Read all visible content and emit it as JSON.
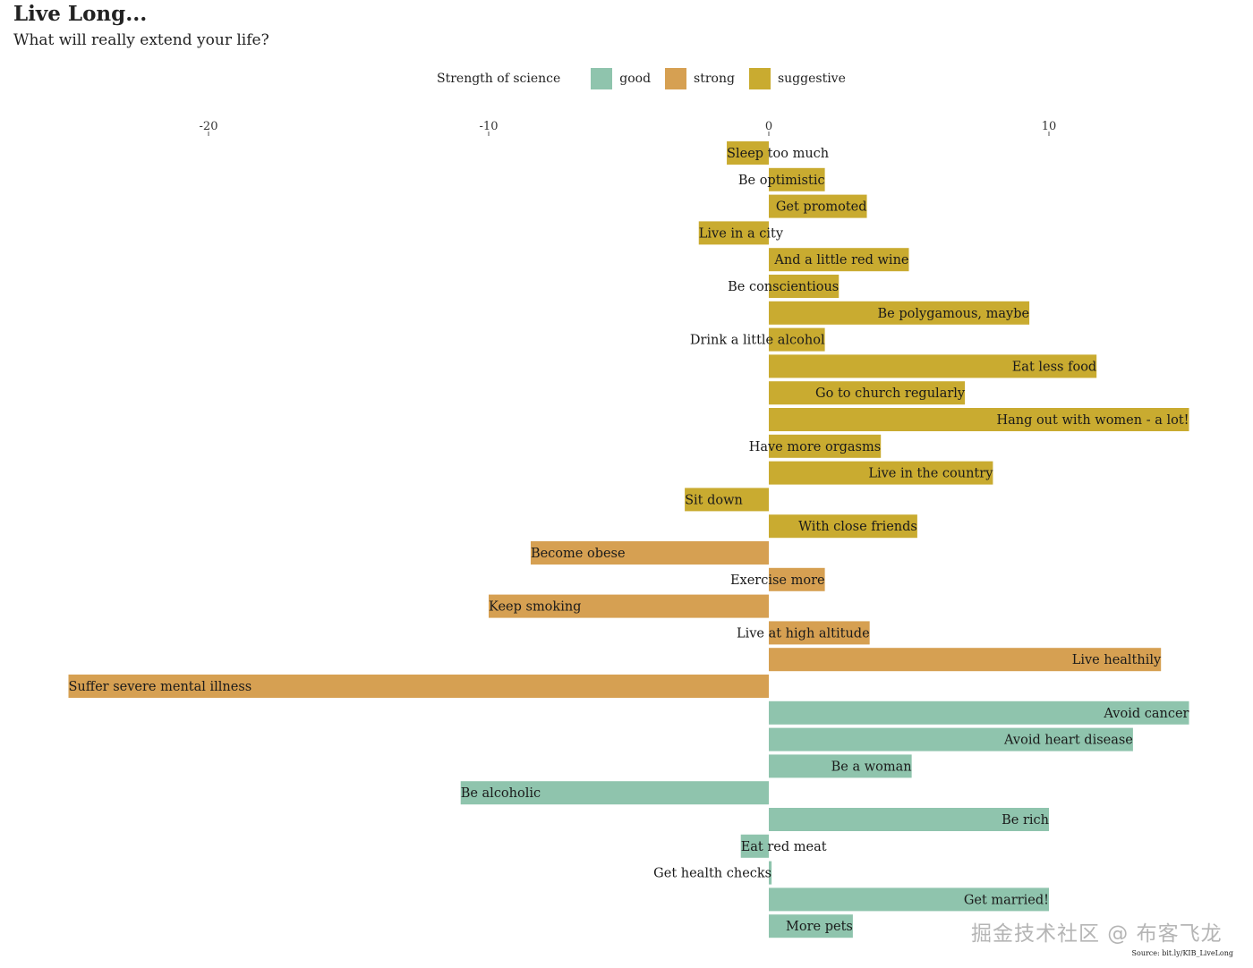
{
  "header": {
    "title": "Live Long...",
    "subtitle": "What will really extend your life?"
  },
  "legend": {
    "title": "Strength of science",
    "items": [
      {
        "label": "good",
        "color": "#8fc4ad"
      },
      {
        "label": "strong",
        "color": "#d6a052"
      },
      {
        "label": "suggestive",
        "color": "#c9ab30"
      }
    ]
  },
  "source": "Source: bit.ly/KIB_LiveLong",
  "watermark": "掘金技术社区 @ 布客飞龙",
  "chart_data": {
    "type": "bar",
    "orientation": "horizontal",
    "xlim": [
      -25,
      15.5
    ],
    "x_ticks": [
      "-20",
      "-10",
      "0",
      "10"
    ],
    "x_tick_values": [
      -20,
      -10,
      0,
      10
    ],
    "grid": false,
    "legend_position": "top",
    "categories": [
      "Sleep too much",
      "Be optimistic",
      "Get promoted",
      "Live in a city",
      "And a little red wine",
      "Be conscientious",
      "Be polygamous, maybe",
      "Drink a little alcohol",
      "Eat less food",
      "Go to church regularly",
      "Hang out with women - a lot!",
      "Have more orgasms",
      "Live in the country",
      "Sit down",
      "With close friends",
      "Become obese",
      "Exercise more",
      "Keep smoking",
      "Live at high altitude",
      "Live healthily",
      "Suffer severe mental illness",
      "Avoid cancer",
      "Avoid heart disease",
      "Be a woman",
      "Be alcoholic",
      "Be rich",
      "Eat red meat",
      "Get health checks",
      "Get married!",
      "More pets"
    ],
    "values": [
      -1.5,
      2,
      3.5,
      -2.5,
      5,
      2.5,
      9.3,
      2,
      11.7,
      7,
      15,
      4,
      8,
      -3,
      5.3,
      -8.5,
      2,
      -10,
      3.6,
      14,
      -25,
      15,
      13,
      5.1,
      -11,
      10,
      -1,
      0.1,
      10,
      3
    ],
    "strength": [
      "suggestive",
      "suggestive",
      "suggestive",
      "suggestive",
      "suggestive",
      "suggestive",
      "suggestive",
      "suggestive",
      "suggestive",
      "suggestive",
      "suggestive",
      "suggestive",
      "suggestive",
      "suggestive",
      "suggestive",
      "strong",
      "strong",
      "strong",
      "strong",
      "strong",
      "strong",
      "good",
      "good",
      "good",
      "good",
      "good",
      "good",
      "good",
      "good",
      "good"
    ]
  }
}
